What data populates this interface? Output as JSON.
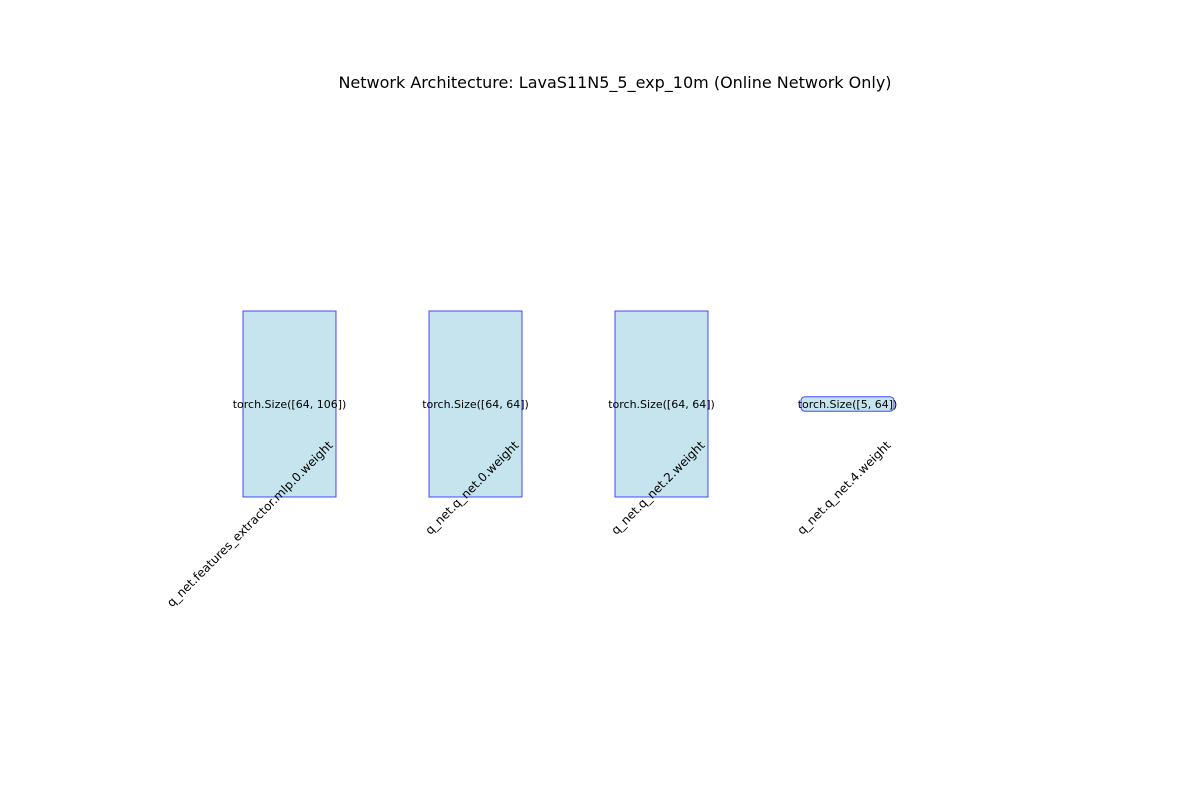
{
  "title": "Network Architecture: LavaS11N5_5_exp_10m (Online Network Only)",
  "colors": {
    "box_fill": "#add8e6",
    "box_stroke": "#0000ff",
    "text": "#000000"
  },
  "layers": [
    {
      "name": "q_net.features_extractor.mlp.0.weight",
      "size_label": "torch.Size([64, 106])",
      "shape": [
        64,
        106
      ]
    },
    {
      "name": "q_net.q_net.0.weight",
      "size_label": "torch.Size([64, 64])",
      "shape": [
        64,
        64
      ]
    },
    {
      "name": "q_net.q_net.2.weight",
      "size_label": "torch.Size([64, 64])",
      "shape": [
        64,
        64
      ]
    },
    {
      "name": "q_net.q_net.4.weight",
      "size_label": "torch.Size([5, 64])",
      "shape": [
        5,
        64
      ]
    }
  ]
}
